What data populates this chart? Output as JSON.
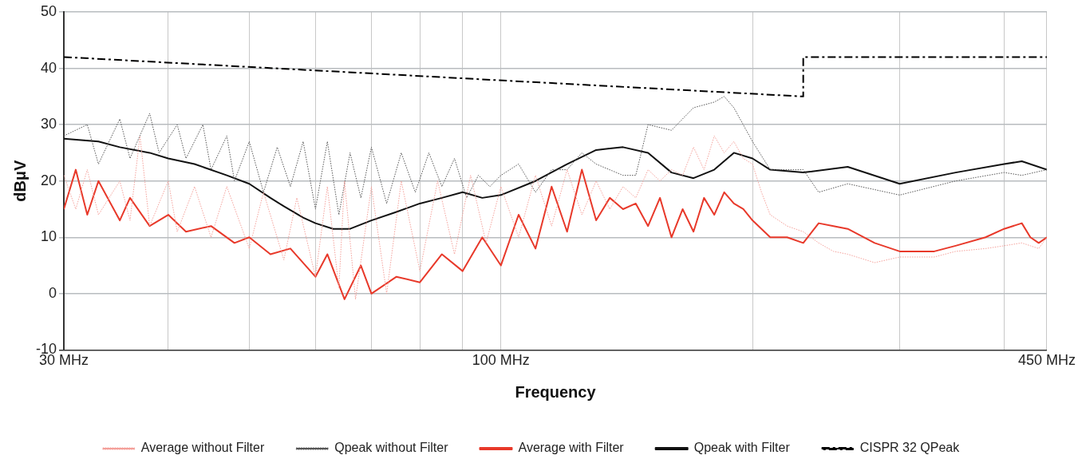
{
  "chart_data": {
    "type": "line",
    "xlabel": "Frequency",
    "ylabel": "dBμV",
    "log": "x",
    "grid": true,
    "legend": "bottom",
    "marker": "none",
    "xlim": [
      30,
      450
    ],
    "xticks": [
      {
        "value": 30,
        "label": "30 MHz"
      },
      {
        "value": 40,
        "label": null
      },
      {
        "value": 50,
        "label": null
      },
      {
        "value": 60,
        "label": null
      },
      {
        "value": 70,
        "label": null
      },
      {
        "value": 80,
        "label": null
      },
      {
        "value": 90,
        "label": null
      },
      {
        "value": 100,
        "label": "100 MHz"
      },
      {
        "value": 200,
        "label": null
      },
      {
        "value": 300,
        "label": null
      },
      {
        "value": 400,
        "label": null
      },
      {
        "value": 450,
        "label": "450 MHz"
      }
    ],
    "ylim": [
      -10,
      50
    ],
    "yticks": [
      -10,
      0,
      10,
      20,
      30,
      40,
      50
    ],
    "series": [
      {
        "name": "Average without Filter",
        "color": "#f4a09a",
        "line_style": "dotted",
        "x": [
          30,
          31,
          32,
          33,
          35,
          36,
          37,
          38,
          40,
          41,
          43,
          45,
          47,
          50,
          52,
          55,
          57,
          60,
          62,
          64,
          65,
          67,
          70,
          73,
          76,
          80,
          84,
          88,
          92,
          96,
          100,
          105,
          110,
          115,
          120,
          125,
          130,
          135,
          140,
          145,
          150,
          155,
          160,
          165,
          170,
          175,
          180,
          185,
          190,
          195,
          200,
          205,
          210,
          220,
          230,
          240,
          250,
          260,
          280,
          300,
          330,
          350,
          380,
          400,
          420,
          430,
          440,
          450
        ],
        "values": [
          21,
          15,
          22,
          14,
          20,
          13,
          28,
          12,
          20,
          11,
          19,
          10,
          19,
          8,
          18,
          6,
          17,
          3,
          19,
          1,
          20,
          -1,
          19,
          0,
          20,
          4,
          20,
          7,
          21,
          9,
          19,
          10,
          21,
          12,
          22,
          14,
          20,
          15,
          19,
          17,
          22,
          20,
          22,
          21,
          26,
          22,
          28,
          25,
          27,
          24,
          23,
          18,
          14,
          12,
          11,
          9,
          7.5,
          7,
          5.5,
          6.5,
          6.5,
          7.5,
          8,
          8.5,
          9,
          8.5,
          8,
          10
        ]
      },
      {
        "name": "Qpeak without Filter",
        "color": "#555555",
        "line_style": "dotted",
        "x": [
          30,
          32,
          33,
          35,
          36,
          38,
          39,
          41,
          42,
          44,
          45,
          47,
          48,
          50,
          52,
          54,
          56,
          58,
          60,
          62,
          64,
          66,
          68,
          70,
          73,
          76,
          79,
          82,
          85,
          88,
          91,
          94,
          97,
          100,
          105,
          110,
          115,
          120,
          125,
          130,
          140,
          145,
          150,
          160,
          170,
          180,
          185,
          190,
          200,
          210,
          230,
          240,
          260,
          300,
          350,
          400,
          420,
          450
        ],
        "values": [
          28,
          30,
          23,
          31,
          24,
          32,
          25,
          30,
          24,
          30,
          22,
          28,
          20,
          27,
          18,
          26,
          19,
          27,
          15,
          27,
          14,
          25,
          17,
          26,
          16,
          25,
          18,
          25,
          19,
          24,
          17,
          21,
          19,
          21,
          23,
          18,
          22,
          22,
          25,
          23,
          21,
          21,
          30,
          29,
          33,
          34,
          35,
          33,
          27,
          22,
          22,
          18,
          19.5,
          17.5,
          20,
          21.5,
          21,
          22
        ]
      },
      {
        "name": "Average with Filter",
        "color": "#e8392a",
        "line_style": "solid",
        "x": [
          30,
          31,
          32,
          33,
          35,
          36,
          38,
          40,
          42,
          45,
          48,
          50,
          53,
          56,
          60,
          62,
          65,
          68,
          70,
          75,
          80,
          85,
          90,
          95,
          100,
          105,
          110,
          115,
          120,
          125,
          130,
          135,
          140,
          145,
          150,
          155,
          160,
          165,
          170,
          175,
          180,
          185,
          190,
          195,
          200,
          210,
          220,
          230,
          240,
          250,
          260,
          280,
          300,
          330,
          350,
          380,
          400,
          420,
          430,
          440,
          450
        ],
        "values": [
          15,
          22,
          14,
          20,
          13,
          17,
          12,
          14,
          11,
          12,
          9,
          10,
          7,
          8,
          3,
          7,
          -1,
          5,
          0,
          3,
          2,
          7,
          4,
          10,
          5,
          14,
          8,
          19,
          11,
          22,
          13,
          17,
          15,
          16,
          12,
          17,
          10,
          15,
          11,
          17,
          14,
          18,
          16,
          15,
          13,
          10,
          10,
          9,
          12.5,
          12,
          11.5,
          9,
          7.5,
          7.5,
          8.5,
          10,
          11.5,
          12.5,
          10,
          9,
          10
        ]
      },
      {
        "name": "Qpeak with Filter",
        "color": "#111111",
        "line_style": "solid",
        "x": [
          30,
          33,
          35,
          38,
          40,
          43,
          47,
          50,
          53,
          55,
          58,
          60,
          63,
          66,
          70,
          75,
          80,
          85,
          90,
          95,
          100,
          110,
          120,
          130,
          140,
          150,
          160,
          170,
          180,
          190,
          200,
          210,
          230,
          260,
          300,
          350,
          400,
          420,
          450
        ],
        "values": [
          27.5,
          27,
          26,
          25,
          24,
          23,
          21,
          19.5,
          17,
          15.5,
          13.5,
          12.5,
          11.5,
          11.5,
          13,
          14.5,
          16,
          17,
          18,
          17,
          17.5,
          20,
          23,
          25.5,
          26,
          25,
          21.5,
          20.5,
          22,
          25,
          24,
          22,
          21.5,
          22.5,
          19.5,
          21.5,
          23,
          23.5,
          22
        ]
      },
      {
        "name": "CISPR 32 QPeak",
        "color": "#000000",
        "line_style": "dashed",
        "x": [
          30,
          230,
          230,
          450
        ],
        "values": [
          42,
          35,
          42,
          42
        ]
      }
    ]
  }
}
